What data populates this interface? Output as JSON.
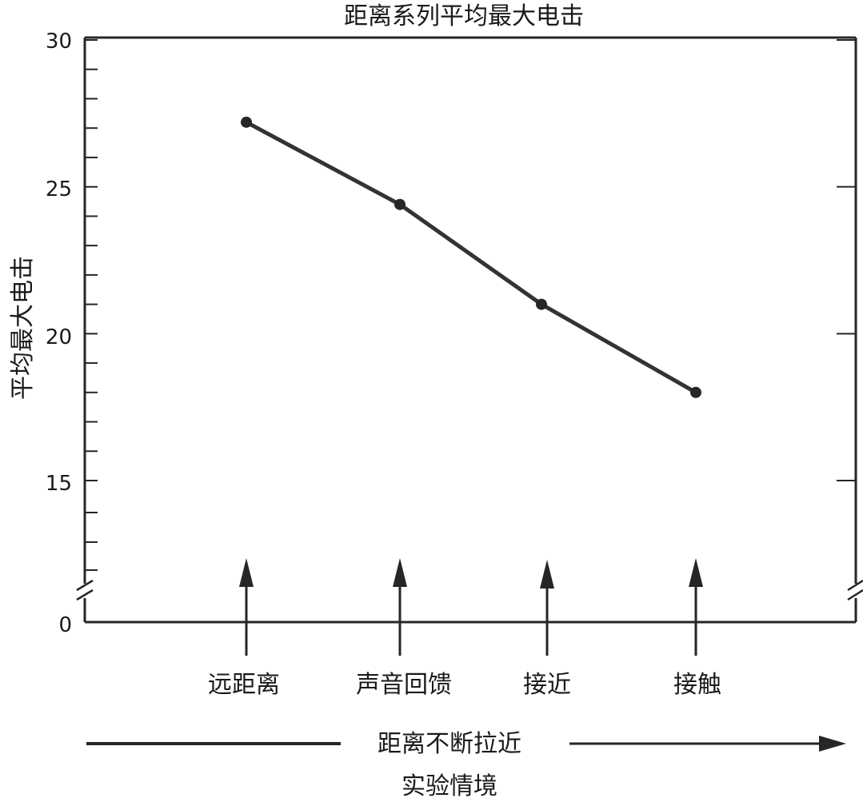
{
  "chart_data": {
    "type": "line",
    "title": "距离系列平均最大电击",
    "ylabel": "平均最大电击",
    "xlabel": "实验情境",
    "direction_label": "距离不断拉近",
    "categories": [
      "远距离",
      "声音回馈",
      "接近",
      "接触"
    ],
    "series": [
      {
        "values": [
          27.2,
          24.4,
          21.0,
          18.0
        ]
      }
    ],
    "y_ticks": [
      "30",
      "25",
      "20",
      "15",
      "0"
    ],
    "ylim": [
      0,
      30
    ],
    "y_axis_break": true,
    "grid": false,
    "line_color": "#333333"
  }
}
